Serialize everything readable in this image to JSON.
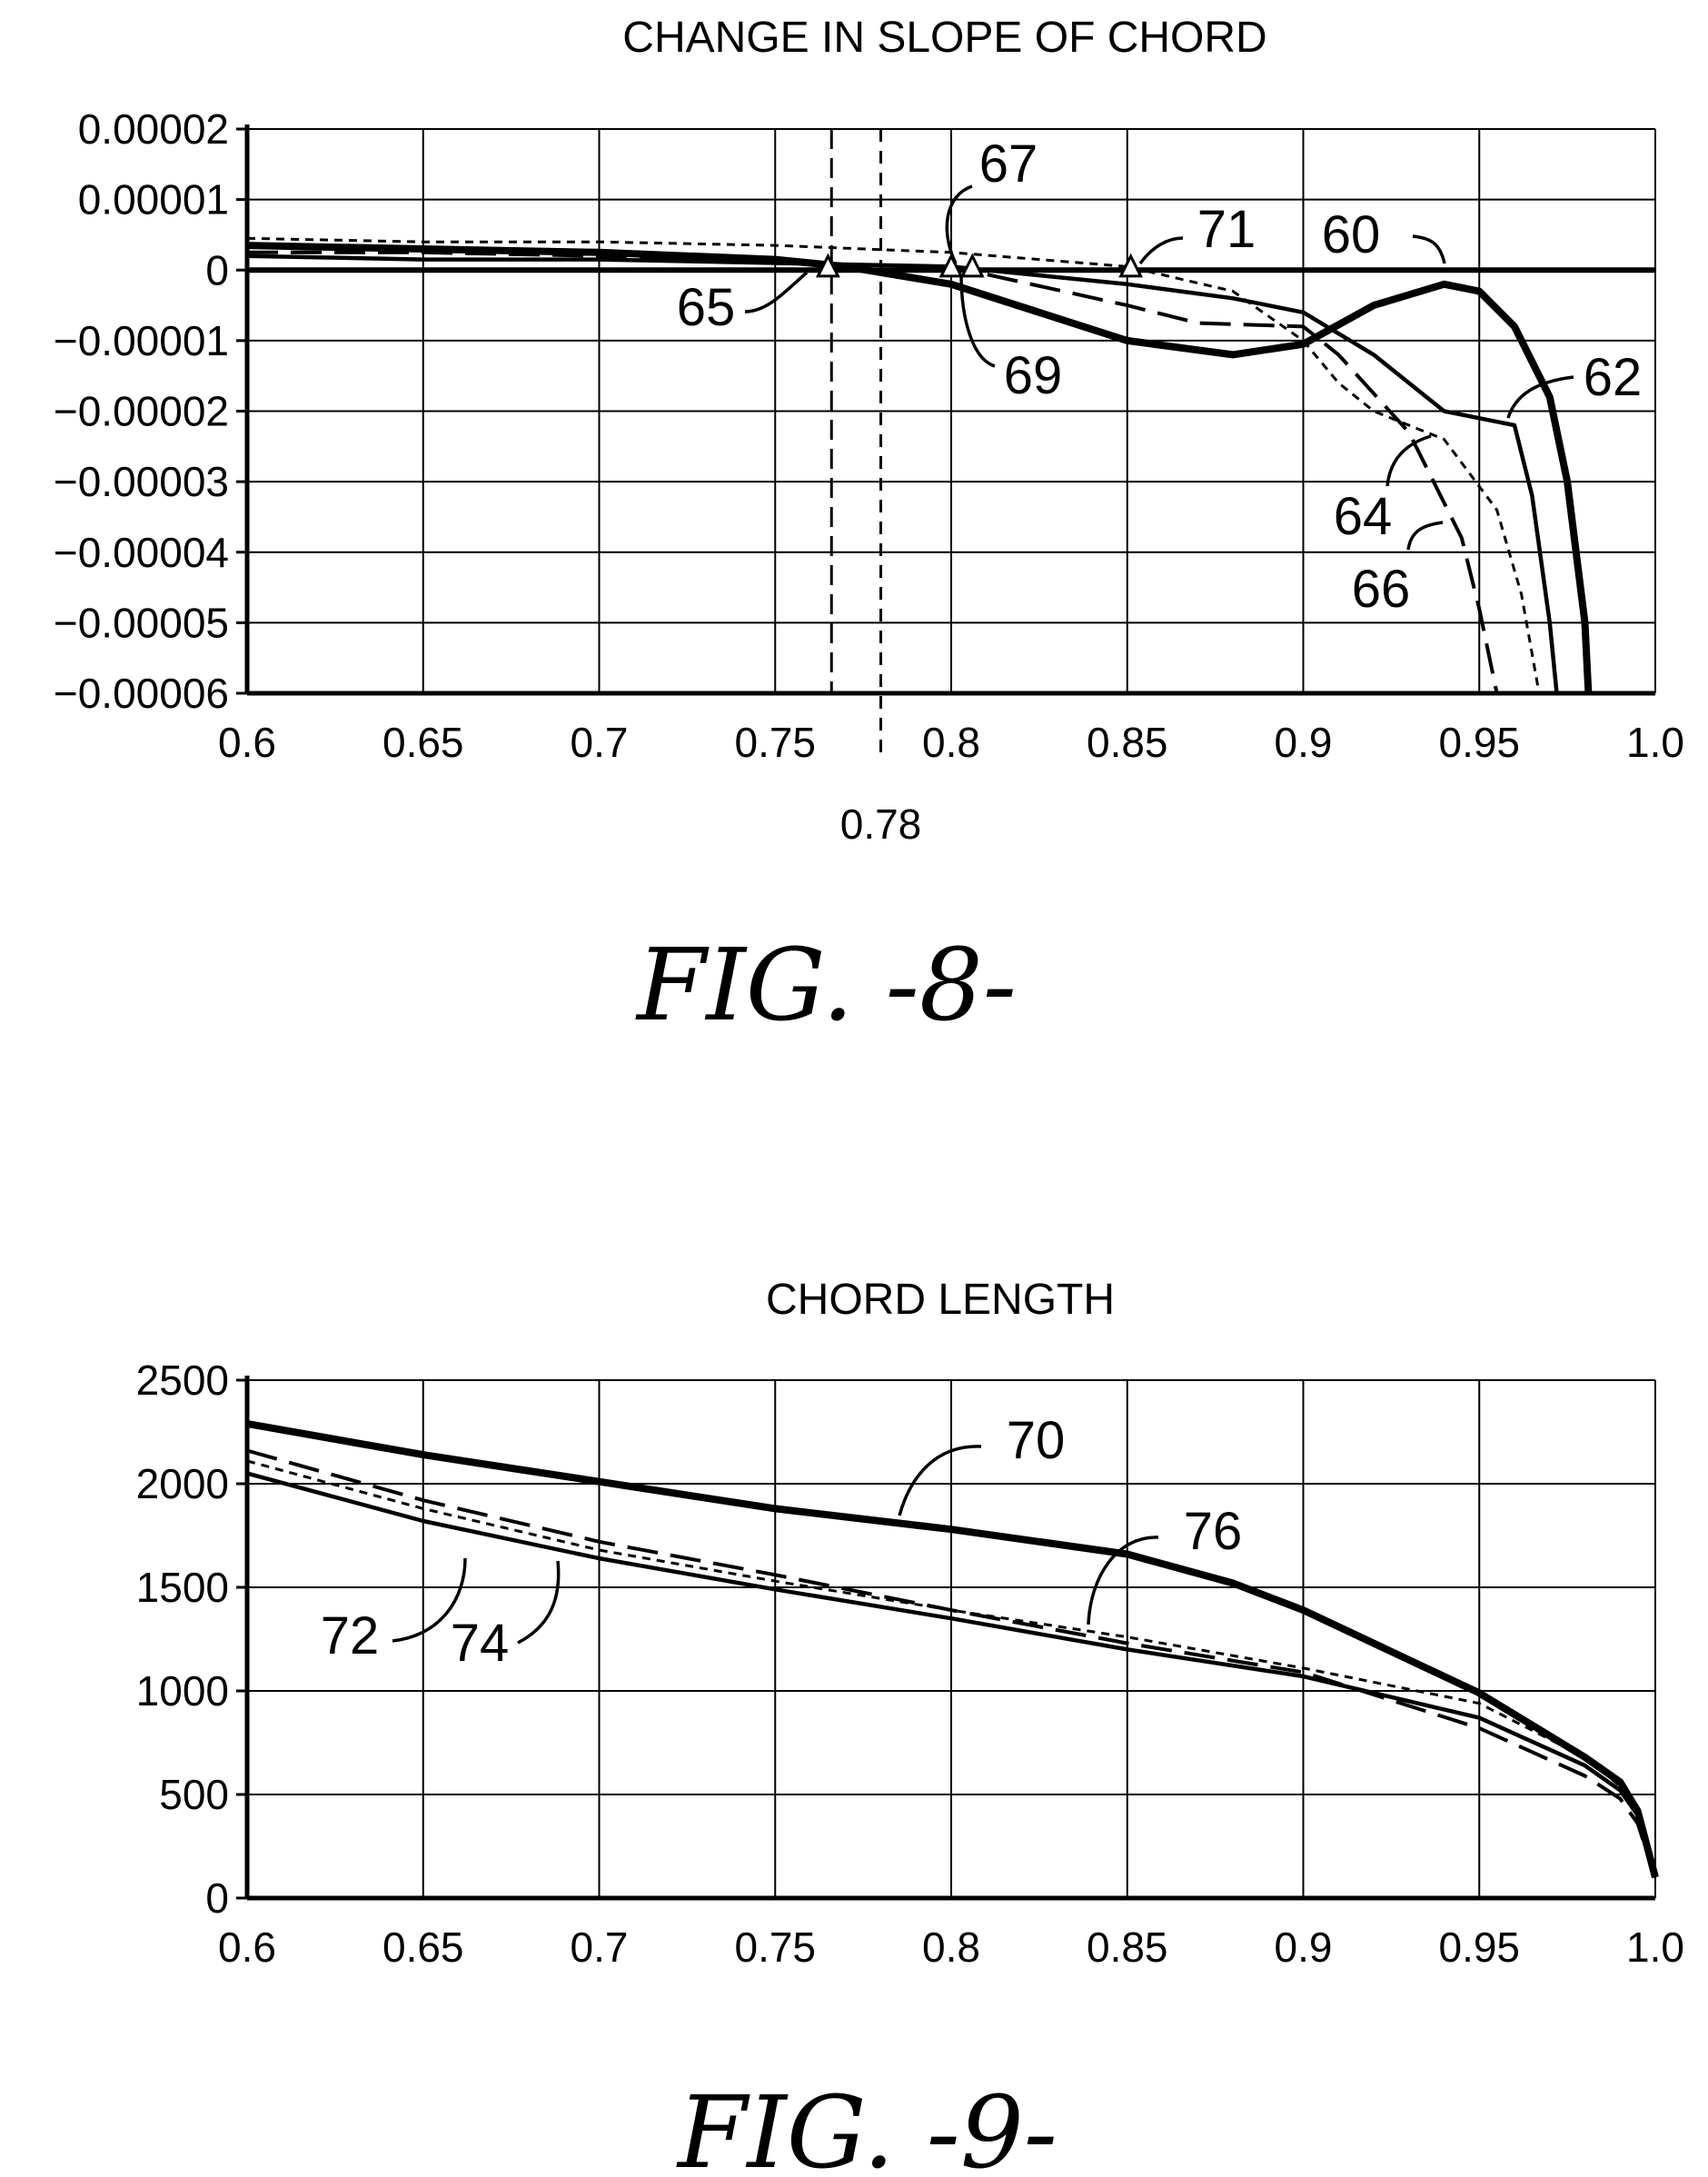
{
  "figures": [
    {
      "caption": "FIG. -8-"
    },
    {
      "caption": "FIG. -9-"
    }
  ],
  "chart_data": [
    {
      "type": "line",
      "title": "CHANGE IN SLOPE OF CHORD",
      "xlabel": "",
      "ylabel": "",
      "xlim": [
        0.6,
        1.0
      ],
      "ylim": [
        -6e-05,
        2e-05
      ],
      "x_ticks": [
        0.6,
        0.65,
        0.7,
        0.75,
        0.8,
        0.85,
        0.9,
        0.95,
        1.0
      ],
      "x_tick_labels": [
        "0.6",
        "0.65",
        "0.7",
        "0.75",
        "0.8",
        "0.85",
        "0.9",
        "0.95",
        "1.0"
      ],
      "y_ticks": [
        2e-05,
        1e-05,
        0,
        -1e-05,
        -2e-05,
        -3e-05,
        -4e-05,
        -5e-05,
        -6e-05
      ],
      "y_tick_labels": [
        "0.00002",
        "0.00001",
        "0",
        "−0.00001",
        "−0.00002",
        "−0.00003",
        "−0.00004",
        "−0.00005",
        "−0.00006"
      ],
      "grid": true,
      "zero_line": true,
      "vlines": [
        {
          "x": 0.766,
          "label": ""
        },
        {
          "x": 0.78,
          "label": "0.78"
        }
      ],
      "series": [
        {
          "ref": "60",
          "style": "heavy",
          "x": [
            0.6,
            0.65,
            0.7,
            0.75,
            0.77,
            0.8,
            0.85,
            0.88,
            0.9,
            0.92,
            0.94,
            0.95,
            0.96,
            0.97,
            0.975,
            0.98,
            0.981
          ],
          "y": [
            3.5e-06,
            3e-06,
            2.5e-06,
            1.5e-06,
            5e-07,
            -2e-06,
            -1e-05,
            -1.2e-05,
            -1.05e-05,
            -5e-06,
            -2e-06,
            -3e-06,
            -8e-06,
            -1.8e-05,
            -3e-05,
            -5e-05,
            -6e-05
          ]
        },
        {
          "ref": "62",
          "style": "solid",
          "x": [
            0.6,
            0.65,
            0.7,
            0.75,
            0.8,
            0.85,
            0.88,
            0.9,
            0.92,
            0.94,
            0.96,
            0.965,
            0.97,
            0.972
          ],
          "y": [
            2e-06,
            1.5e-06,
            1.5e-06,
            1e-06,
            5e-07,
            -2e-06,
            -4e-06,
            -6e-06,
            -1.2e-05,
            -2e-05,
            -2.2e-05,
            -3.2e-05,
            -5e-05,
            -6e-05
          ]
        },
        {
          "ref": "64",
          "style": "short-dash",
          "x": [
            0.6,
            0.65,
            0.7,
            0.75,
            0.8,
            0.85,
            0.88,
            0.9,
            0.91,
            0.92,
            0.94,
            0.955,
            0.962,
            0.967
          ],
          "y": [
            4.5e-06,
            4e-06,
            4e-06,
            3.5e-06,
            2.5e-06,
            5e-07,
            -3e-06,
            -1e-05,
            -1.6e-05,
            -2e-05,
            -2.4e-05,
            -3.4e-05,
            -4.6e-05,
            -6e-05
          ]
        },
        {
          "ref": "66",
          "style": "long-dash",
          "x": [
            0.6,
            0.65,
            0.7,
            0.75,
            0.8,
            0.85,
            0.87,
            0.9,
            0.91,
            0.93,
            0.945,
            0.95,
            0.955
          ],
          "y": [
            2.5e-06,
            2.5e-06,
            2e-06,
            1e-06,
            5e-07,
            -5e-06,
            -7.5e-06,
            -8e-06,
            -1.2e-05,
            -2.3e-05,
            -3.8e-05,
            -4.8e-05,
            -6e-05
          ]
        }
      ],
      "markers": [
        {
          "ref": "65",
          "x": 0.765,
          "y": 3e-07
        },
        {
          "ref": "67",
          "x": 0.8,
          "y": 3e-07
        },
        {
          "ref": "69",
          "x": 0.806,
          "y": 3e-07
        },
        {
          "ref": "71",
          "x": 0.851,
          "y": 3e-07
        }
      ],
      "callouts": [
        "67",
        "71",
        "60",
        "65",
        "69",
        "62",
        "64",
        "66"
      ]
    },
    {
      "type": "line",
      "title": "CHORD LENGTH",
      "xlabel": "",
      "ylabel": "",
      "xlim": [
        0.6,
        1.0
      ],
      "ylim": [
        0,
        2500
      ],
      "x_ticks": [
        0.6,
        0.65,
        0.7,
        0.75,
        0.8,
        0.85,
        0.9,
        0.95,
        1.0
      ],
      "x_tick_labels": [
        "0.6",
        "0.65",
        "0.7",
        "0.75",
        "0.8",
        "0.85",
        "0.9",
        "0.95",
        "1.0"
      ],
      "y_ticks": [
        2500,
        2000,
        1500,
        1000,
        500,
        0
      ],
      "y_tick_labels": [
        "2500",
        "2000",
        "1500",
        "1000",
        "500",
        "0"
      ],
      "grid": true,
      "series": [
        {
          "ref": "70",
          "style": "heavy",
          "x": [
            0.6,
            0.65,
            0.7,
            0.75,
            0.8,
            0.85,
            0.88,
            0.9,
            0.95,
            0.98,
            0.99,
            0.995,
            1.0
          ],
          "y": [
            2290,
            2140,
            2010,
            1880,
            1780,
            1660,
            1520,
            1390,
            990,
            680,
            560,
            420,
            100
          ]
        },
        {
          "ref": "72",
          "style": "solid",
          "x": [
            0.6,
            0.65,
            0.7,
            0.75,
            0.8,
            0.85,
            0.9,
            0.95,
            0.98,
            0.99,
            0.995,
            1.0
          ],
          "y": [
            2050,
            1820,
            1640,
            1490,
            1350,
            1200,
            1070,
            870,
            640,
            520,
            400,
            100
          ]
        },
        {
          "ref": "74",
          "style": "short-dash",
          "x": [
            0.6,
            0.65,
            0.7,
            0.75,
            0.8,
            0.85,
            0.9,
            0.95,
            0.98,
            0.99,
            0.995,
            1.0
          ],
          "y": [
            2110,
            1880,
            1680,
            1530,
            1390,
            1260,
            1110,
            940,
            680,
            540,
            420,
            100
          ]
        },
        {
          "ref": "76",
          "style": "long-dash",
          "x": [
            0.6,
            0.65,
            0.7,
            0.75,
            0.8,
            0.85,
            0.9,
            0.95,
            0.98,
            0.99,
            0.995,
            1.0
          ],
          "y": [
            2160,
            1920,
            1720,
            1560,
            1390,
            1230,
            1090,
            820,
            590,
            480,
            360,
            100
          ]
        }
      ],
      "callouts": [
        "70",
        "76",
        "72",
        "74"
      ]
    }
  ]
}
